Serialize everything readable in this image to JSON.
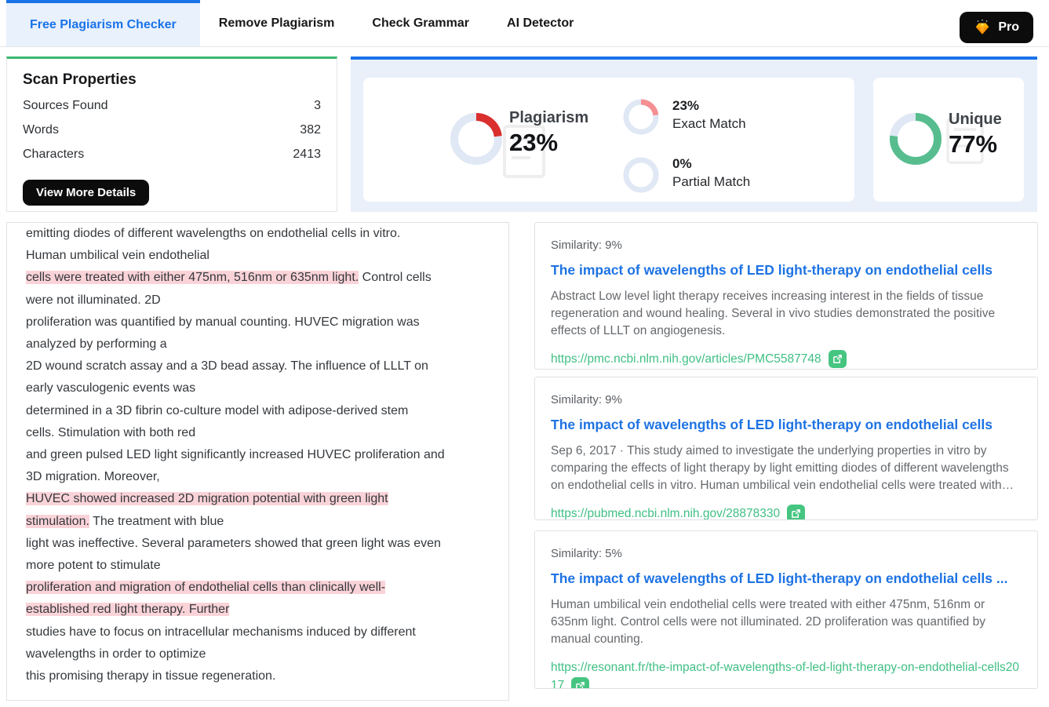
{
  "nav": {
    "tabs": [
      {
        "label": "Free Plagiarism Checker",
        "active": true
      },
      {
        "label": "Remove Plagiarism",
        "active": false
      },
      {
        "label": "Check Grammar",
        "active": false
      },
      {
        "label": "AI Detector",
        "active": false
      }
    ],
    "pro_label": "Pro"
  },
  "scan_properties": {
    "title": "Scan Properties",
    "rows": [
      {
        "label": "Sources Found",
        "value": "3"
      },
      {
        "label": "Words",
        "value": "382"
      },
      {
        "label": "Characters",
        "value": "2413"
      }
    ],
    "button_label": "View More Details"
  },
  "summary": {
    "plagiarism": {
      "label": "Plagiarism",
      "value": "23%",
      "percent": 23
    },
    "exact_match": {
      "value": "23%",
      "label": "Exact Match",
      "percent": 23
    },
    "partial_match": {
      "value": "0%",
      "label": "Partial Match",
      "percent": 0
    },
    "unique": {
      "label": "Unique",
      "value": "77%",
      "percent": 77
    }
  },
  "colors": {
    "accent_blue": "#1a73e8",
    "scan_green": "#3bb770",
    "plagiarism_red": "#d92f2f",
    "exact_pink": "#f58f92",
    "unique_green": "#57bd8f",
    "donut_track": "#dfe8f4",
    "highlight_pink": "#fad3d8",
    "link_green": "#3fbf83"
  },
  "document": {
    "segments": [
      {
        "highlight": false,
        "text": "emitting diodes of different wavelengths on endothelial cells in vitro.\nHuman umbilical vein endothelial\n"
      },
      {
        "highlight": true,
        "text": "cells were treated with either 475nm, 516nm or 635nm light."
      },
      {
        "highlight": false,
        "text": " Control cells\nwere not illuminated. 2D\nproliferation was quantified by manual counting. HUVEC migration was\nanalyzed by performing a\n2D wound scratch assay and a 3D bead assay. The influence of LLLT on\nearly vasculogenic events was\ndetermined in a 3D fibrin co-culture model with adipose-derived stem\ncells. Stimulation with both red\nand green pulsed LED light significantly increased HUVEC proliferation and\n3D migration. Moreover,\n"
      },
      {
        "highlight": true,
        "text": "HUVEC showed increased 2D migration potential with green light\nstimulation."
      },
      {
        "highlight": false,
        "text": " The treatment with blue\nlight was ineffective. Several parameters showed that green light was even\nmore potent to stimulate\n"
      },
      {
        "highlight": true,
        "text": "proliferation and migration of endothelial cells than clinically well-\nestablished red light therapy. Further"
      },
      {
        "highlight": false,
        "text": "\nstudies have to focus on intracellular mechanisms induced by different\nwavelengths in order to optimize\nthis promising therapy in tissue regeneration."
      }
    ]
  },
  "sources": [
    {
      "similarity": "Similarity: 9%",
      "title": "The impact of wavelengths of LED light-therapy on endothelial cells",
      "description": "Abstract Low level light therapy receives increasing interest in the fields of tissue regeneration and wound healing. Several in vivo studies demonstrated the positive effects of LLLT on angiogenesis.",
      "url": "https://pmc.ncbi.nlm.nih.gov/articles/PMC5587748"
    },
    {
      "similarity": "Similarity: 9%",
      "title": "The impact of wavelengths of LED light-therapy on endothelial cells",
      "description": "Sep 6, 2017 · This study aimed to investigate the underlying properties in vitro by comparing the effects of light therapy by light emitting diodes of different wavelengths on endothelial cells in vitro. Human umbilical vein endothelial cells were treated with…",
      "url": "https://pubmed.ncbi.nlm.nih.gov/28878330"
    },
    {
      "similarity": "Similarity: 5%",
      "title": "The impact of wavelengths of LED light-therapy on endothelial cells ...",
      "description": "Human umbilical vein endothelial cells were treated with either 475nm, 516nm or 635nm light. Control cells were not illuminated. 2D proliferation was quantified by manual counting.",
      "url": "https://resonant.fr/the-impact-of-wavelengths-of-led-light-therapy-on-endothelial-cells2017"
    }
  ]
}
